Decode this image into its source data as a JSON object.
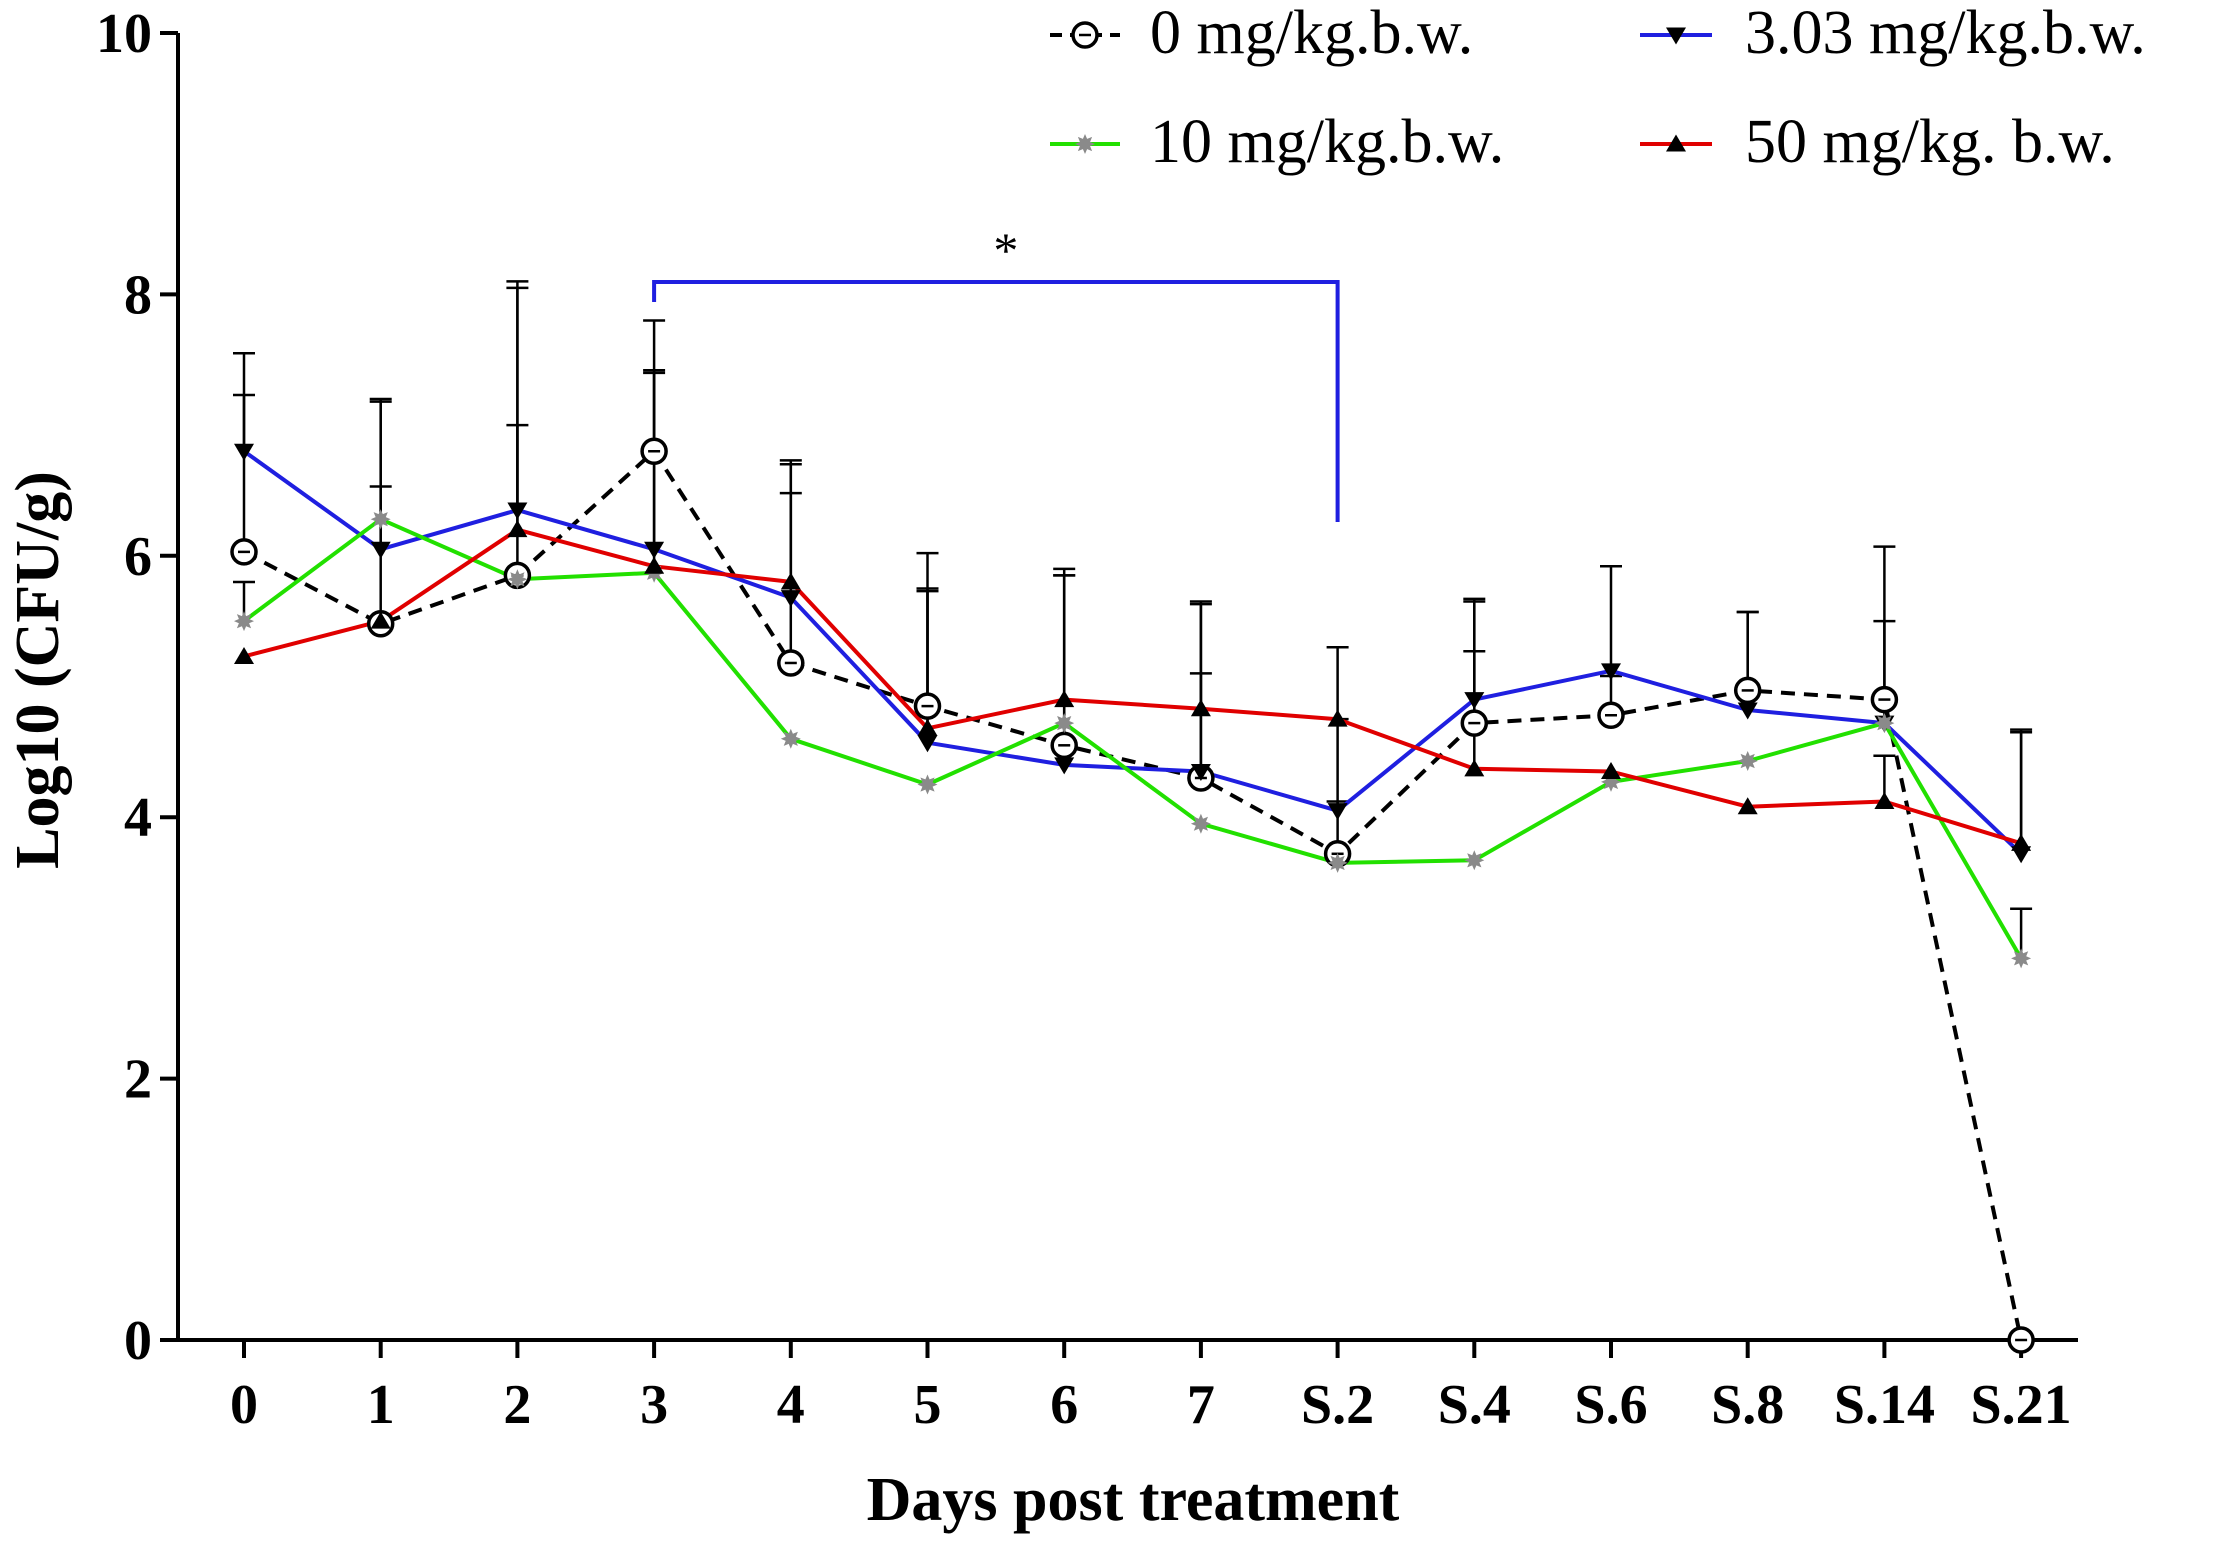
{
  "chart_data": {
    "type": "line",
    "title": "",
    "xlabel": "Days post treatment",
    "ylabel": "Log10 (CFU/g)",
    "ylim": [
      0,
      10
    ],
    "yticks": [
      0,
      2,
      4,
      6,
      8,
      10
    ],
    "categories": [
      "0",
      "1",
      "2",
      "3",
      "4",
      "5",
      "6",
      "7",
      "S.2",
      "S.4",
      "S.6",
      "S.8",
      "S.14",
      "S.21"
    ],
    "legend_position": "top-right",
    "significance": {
      "label": "*",
      "from_category": "3",
      "to_category": "S.2",
      "color": "#1f1fe0"
    },
    "series": [
      {
        "name": "0 mg/kg.b.w.",
        "color": "#000000",
        "line_style": "dashed",
        "marker": "open-circle",
        "values": [
          6.03,
          5.48,
          5.85,
          6.8,
          5.18,
          4.85,
          4.55,
          4.3,
          3.72,
          4.72,
          4.78,
          4.97,
          4.9,
          0.0
        ],
        "error": [
          1.2,
          1.7,
          2.2,
          1.0,
          1.3,
          0.9,
          1.3,
          0.8,
          0.4,
          0.95,
          0.3,
          0.6,
          0.6,
          0.0
        ]
      },
      {
        "name": "3.03 mg/kg.b.w.",
        "color": "#1f1fe0",
        "line_style": "solid",
        "marker": "down-triangle",
        "values": [
          6.8,
          6.05,
          6.35,
          6.05,
          5.68,
          4.57,
          4.4,
          4.35,
          4.05,
          4.9,
          5.12,
          4.82,
          4.72,
          3.72
        ],
        "error": [
          0.75,
          1.15,
          1.75,
          1.35,
          1.05,
          1.45,
          1.5,
          1.3,
          0.7,
          0.75,
          0.8,
          0.75,
          1.35,
          0.95
        ]
      },
      {
        "name": "10 mg/kg.b.w.",
        "color": "#22e000",
        "line_style": "solid",
        "marker": "grey-star",
        "values": [
          5.5,
          6.28,
          5.82,
          5.87,
          4.6,
          4.25,
          4.72,
          3.95,
          3.65,
          3.67,
          4.27,
          4.43,
          4.72,
          2.92
        ],
        "error": [
          0.3,
          0.25,
          0.0,
          0.0,
          0.0,
          0.0,
          0.0,
          0.0,
          0.0,
          0.0,
          0.0,
          0.0,
          0.0,
          0.38
        ]
      },
      {
        "name": "50 mg/kg. b.w.",
        "color": "#e00000",
        "line_style": "solid",
        "marker": "up-triangle",
        "values": [
          5.23,
          5.5,
          6.2,
          5.92,
          5.8,
          4.68,
          4.9,
          4.83,
          4.75,
          4.37,
          4.35,
          4.08,
          4.12,
          3.8
        ],
        "error": [
          0.0,
          0.0,
          0.8,
          1.5,
          0.9,
          1.05,
          0.95,
          0.8,
          0.55,
          0.9,
          0.0,
          0.0,
          0.35,
          0.85
        ]
      }
    ]
  }
}
